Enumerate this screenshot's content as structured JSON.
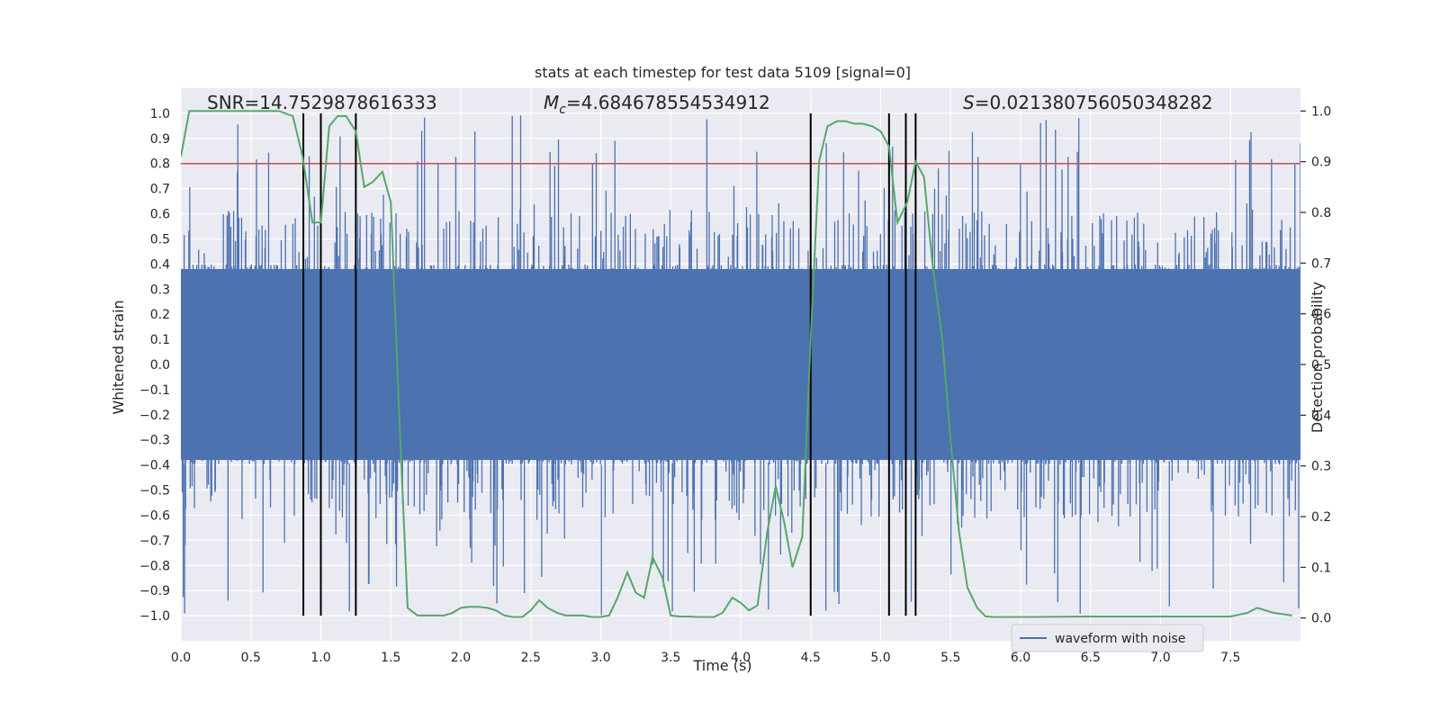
{
  "chart_data": {
    "type": "line",
    "title": "stats at each timestep for test data 5109 [signal=0]",
    "xlabel": "Time (s)",
    "ylabel": "Whitened strain",
    "y2label": "Detection probability",
    "xlim": [
      0.0,
      8.0
    ],
    "ylim": [
      -1.1,
      1.1
    ],
    "y2lim": [
      -0.045,
      1.045
    ],
    "x_ticks": [
      0.0,
      0.5,
      1.0,
      1.5,
      2.0,
      2.5,
      3.0,
      3.5,
      4.0,
      4.5,
      5.0,
      5.5,
      6.0,
      6.5,
      7.0,
      7.5
    ],
    "x_tick_labels": [
      "0.0",
      "0.5",
      "1.0",
      "1.5",
      "2.0",
      "2.5",
      "3.0",
      "3.5",
      "4.0",
      "4.5",
      "5.0",
      "5.5",
      "6.0",
      "6.5",
      "7.0",
      "7.5"
    ],
    "y_ticks": [
      1.0,
      0.9,
      0.8,
      0.7,
      0.6,
      0.5,
      0.4,
      0.3,
      0.2,
      0.1,
      0.0,
      -0.1,
      -0.2,
      -0.3,
      -0.4,
      -0.5,
      -0.6,
      -0.7,
      -0.8,
      -0.9,
      -1.0
    ],
    "y_tick_labels": [
      "1.0",
      "0.9",
      "0.8",
      "0.7",
      "0.6",
      "0.5",
      "0.4",
      "0.3",
      "0.2",
      "0.1",
      "0.0",
      "−0.1",
      "−0.2",
      "−0.3",
      "−0.4",
      "−0.5",
      "−0.6",
      "−0.7",
      "−0.8",
      "−0.9",
      "−1.0"
    ],
    "y2_ticks": [
      1.0,
      0.9,
      0.8,
      0.7,
      0.6,
      0.5,
      0.4,
      0.3,
      0.2,
      0.1,
      0.0
    ],
    "y2_tick_labels": [
      "1.0",
      "0.9",
      "0.8",
      "0.7",
      "0.6",
      "0.5",
      "0.4",
      "0.3",
      "0.2",
      "0.1",
      "0.0"
    ],
    "grid": true,
    "legend_position": "bottom-right",
    "annotations": {
      "snr": "SNR=14.7529878616333",
      "mc_symbol": "M",
      "mc_subscript": "c",
      "mc_value": "=4.684678554534912",
      "s_symbol": "S",
      "s_value": "=0.021380756050348282"
    },
    "threshold": {
      "y": 0.8,
      "color": "#c44e52"
    },
    "vlines": [
      0.875,
      1.0,
      1.25,
      4.5,
      5.06,
      5.18,
      5.25
    ],
    "waveform": {
      "name": "waveform with noise",
      "color": "#4c72b0",
      "sample_count": 2400,
      "core_amplitude": 0.38,
      "peak_amplitude": 1.0
    },
    "detection_probability": {
      "color": "#55a868",
      "x": [
        0.0,
        0.06,
        0.15,
        0.25,
        0.4,
        0.55,
        0.7,
        0.8,
        0.87,
        0.94,
        1.0,
        1.06,
        1.12,
        1.18,
        1.25,
        1.31,
        1.37,
        1.44,
        1.5,
        1.56,
        1.62,
        1.69,
        1.75,
        1.81,
        1.88,
        1.94,
        2.0,
        2.06,
        2.12,
        2.19,
        2.25,
        2.31,
        2.37,
        2.44,
        2.5,
        2.56,
        2.62,
        2.69,
        2.75,
        2.81,
        2.87,
        2.94,
        3.0,
        3.06,
        3.12,
        3.19,
        3.25,
        3.31,
        3.37,
        3.44,
        3.5,
        3.56,
        3.62,
        3.69,
        3.75,
        3.81,
        3.87,
        3.94,
        4.0,
        4.06,
        4.12,
        4.19,
        4.25,
        4.31,
        4.37,
        4.44,
        4.5,
        4.56,
        4.62,
        4.69,
        4.75,
        4.81,
        4.87,
        4.94,
        5.0,
        5.06,
        5.12,
        5.19,
        5.25,
        5.31,
        5.37,
        5.44,
        5.5,
        5.56,
        5.62,
        5.69,
        5.75,
        5.81,
        6.0,
        6.5,
        7.0,
        7.5,
        7.62,
        7.69,
        7.75,
        7.81,
        7.94
      ],
      "y": [
        0.91,
        1.0,
        1.0,
        1.0,
        1.0,
        1.0,
        1.0,
        0.99,
        0.91,
        0.78,
        0.78,
        0.97,
        0.99,
        0.99,
        0.96,
        0.85,
        0.86,
        0.88,
        0.82,
        0.4,
        0.02,
        0.005,
        0.005,
        0.005,
        0.005,
        0.01,
        0.02,
        0.022,
        0.022,
        0.02,
        0.015,
        0.005,
        0.002,
        0.002,
        0.015,
        0.035,
        0.02,
        0.01,
        0.005,
        0.005,
        0.005,
        0.002,
        0.002,
        0.005,
        0.04,
        0.09,
        0.05,
        0.04,
        0.12,
        0.08,
        0.005,
        0.003,
        0.003,
        0.002,
        0.002,
        0.002,
        0.01,
        0.04,
        0.03,
        0.015,
        0.025,
        0.17,
        0.26,
        0.19,
        0.1,
        0.16,
        0.55,
        0.9,
        0.97,
        0.98,
        0.98,
        0.975,
        0.975,
        0.97,
        0.96,
        0.93,
        0.78,
        0.82,
        0.9,
        0.87,
        0.7,
        0.55,
        0.35,
        0.17,
        0.06,
        0.02,
        0.003,
        0.002,
        0.002,
        0.003,
        0.003,
        0.003,
        0.01,
        0.02,
        0.015,
        0.01,
        0.005
      ]
    }
  }
}
